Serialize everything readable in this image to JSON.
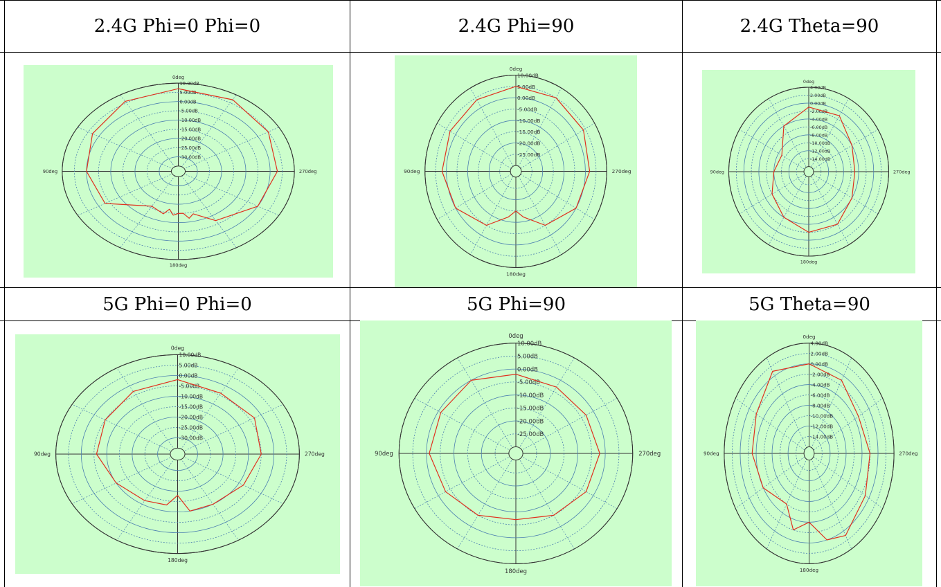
{
  "colors": {
    "background": "#ccfecc",
    "grid": "#4a7fb0",
    "trace": "#e0301e",
    "axis": "#333333"
  },
  "headers": [
    "2.4G Phi=0 Phi=0",
    "2.4G Phi=90",
    "2.4G Theta=90",
    "5G Phi=0 Phi=0",
    "5G Phi=90",
    "5G Theta=90"
  ],
  "chart_data": [
    {
      "type": "polar",
      "angle_labels": {
        "top": "0deg",
        "left": "90deg",
        "right": "270deg",
        "bottom": "180deg"
      },
      "radial_labels": [
        "10.00dB",
        "5.00dB",
        "0.00dB",
        "-5.00dB",
        "-10.00dB",
        "-15.00dB",
        "-20.00dB",
        "-25.00dB",
        "-30.00dB"
      ],
      "rmin": -35,
      "rmax": 10,
      "theta": [
        0,
        30,
        60,
        90,
        120,
        150,
        165,
        170,
        175,
        180,
        185,
        190,
        195,
        210,
        240,
        270,
        300,
        330,
        360
      ],
      "gain_db": [
        7,
        6,
        3,
        0,
        -3,
        -16,
        -14,
        -17,
        -14,
        -15,
        -15,
        -12,
        -14,
        -7,
        0,
        3,
        5,
        7,
        7
      ]
    },
    {
      "type": "polar",
      "angle_labels": {
        "top": "0deg",
        "left": "90deg",
        "right": "270deg",
        "bottom": "180deg"
      },
      "radial_labels": [
        "10.00dB",
        "5.00dB",
        "0.00dB",
        "-5.00dB",
        "-10.00dB",
        "-15.00dB",
        "-20.00dB",
        "-25.00dB"
      ],
      "rmin": -30,
      "rmax": 10,
      "theta": [
        0,
        30,
        60,
        90,
        120,
        150,
        170,
        180,
        190,
        210,
        240,
        270,
        300,
        330,
        360
      ],
      "gain_db": [
        5,
        4,
        3,
        2,
        0,
        -5,
        -12,
        -15,
        -12,
        -5,
        0,
        2,
        4,
        5,
        5
      ]
    },
    {
      "type": "polar",
      "angle_labels": {
        "top": "0deg",
        "left": "90deg",
        "right": "270deg",
        "bottom": "180deg"
      },
      "radial_labels": [
        "4.00dB",
        "2.00dB",
        "0.00dB",
        "-2.00dB",
        "-4.00dB",
        "-6.00dB",
        "-8.00dB",
        "-10.00dB",
        "-12.00dB",
        "-14.00dB"
      ],
      "rmin": -16,
      "rmax": 4,
      "theta": [
        0,
        30,
        60,
        90,
        120,
        150,
        180,
        210,
        240,
        270,
        300,
        330,
        360
      ],
      "gain_db": [
        -1,
        -4,
        -9,
        -8,
        -6,
        -4,
        -2,
        -2,
        -4,
        -5,
        -4,
        -1,
        -1
      ]
    },
    {
      "type": "polar",
      "angle_labels": {
        "top": "0deg",
        "left": "90deg",
        "right": "270deg",
        "bottom": "180deg"
      },
      "radial_labels": [
        "10.00dB",
        "5.00dB",
        "0.00dB",
        "-5.00dB",
        "-10.00dB",
        "-15.00dB",
        "-20.00dB",
        "-25.00dB",
        "-30.00dB"
      ],
      "rmin": -35,
      "rmax": 10,
      "theta": [
        0,
        30,
        60,
        90,
        120,
        150,
        170,
        180,
        190,
        210,
        240,
        270,
        300,
        330,
        360
      ],
      "gain_db": [
        -2,
        -3,
        -5,
        -6,
        -10,
        -12,
        -13,
        -18,
        -10,
        -10,
        -8,
        -5,
        -3,
        -4,
        -2
      ]
    },
    {
      "type": "polar",
      "angle_labels": {
        "top": "0deg",
        "left": "90deg",
        "right": "270deg",
        "bottom": "180deg"
      },
      "radial_labels": [
        "10.00dB",
        "5.00dB",
        "0.00dB",
        "-5.00dB",
        "-10.00dB",
        "-15.00dB",
        "-20.00dB",
        "-25.00dB"
      ],
      "rmin": -30,
      "rmax": 10,
      "theta": [
        0,
        30,
        60,
        90,
        120,
        150,
        180,
        210,
        240,
        270,
        300,
        330,
        360
      ],
      "gain_db": [
        -2,
        0,
        -1,
        -1,
        -3,
        -5,
        -7,
        -5,
        -3,
        -2,
        -3,
        -3,
        -2
      ]
    },
    {
      "type": "polar",
      "angle_labels": {
        "top": "0deg",
        "left": "90deg",
        "right": "270deg",
        "bottom": "180deg"
      },
      "radial_labels": [
        "4.00dB",
        "2.00dB",
        "0.00dB",
        "-2.00dB",
        "-4.00dB",
        "-6.00dB",
        "-8.00dB",
        "-10.00dB",
        "-12.00dB",
        "-14.00dB"
      ],
      "rmin": -16,
      "rmax": 4,
      "theta": [
        0,
        30,
        60,
        90,
        120,
        150,
        165,
        180,
        195,
        210,
        240,
        270,
        300,
        330,
        360
      ],
      "gain_db": [
        0,
        1,
        -2,
        -3,
        -4,
        -6,
        -2,
        -4,
        0,
        1,
        -1,
        -2,
        -3,
        -1,
        0
      ]
    }
  ]
}
